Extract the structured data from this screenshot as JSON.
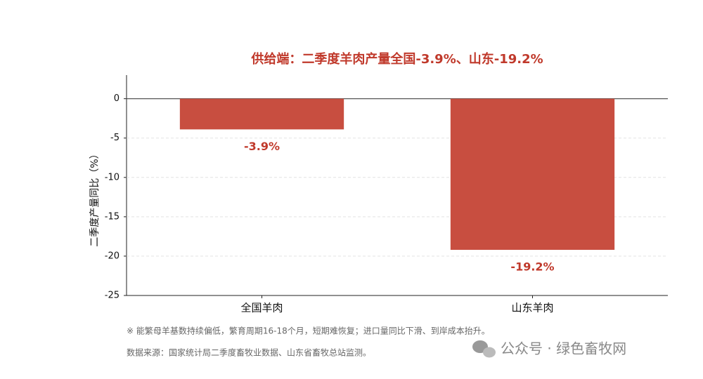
{
  "chart_data": {
    "type": "bar",
    "title": "供给端：二季度羊肉产量全国-3.9%、山东-19.2%",
    "ylabel": "二季度产量同比（%）",
    "categories": [
      "全国羊肉",
      "山东羊肉"
    ],
    "values": [
      -3.9,
      -19.2
    ],
    "value_labels": [
      "-3.9%",
      "-19.2%"
    ],
    "color": "#c84e40",
    "ylim": [
      -25,
      3
    ],
    "yticks": [
      -25,
      -20,
      -15,
      -10,
      -5,
      0
    ],
    "grid": true,
    "notes": [
      "※ 能繁母羊基数持续偏低，繁育周期16-18个月，短期难恢复；进口量同比下滑、到岸成本抬升。",
      "数据来源：国家统计局二季度畜牧业数据、山东省畜牧总站监测。"
    ],
    "watermark": "公众号 · 绿色畜牧网"
  }
}
